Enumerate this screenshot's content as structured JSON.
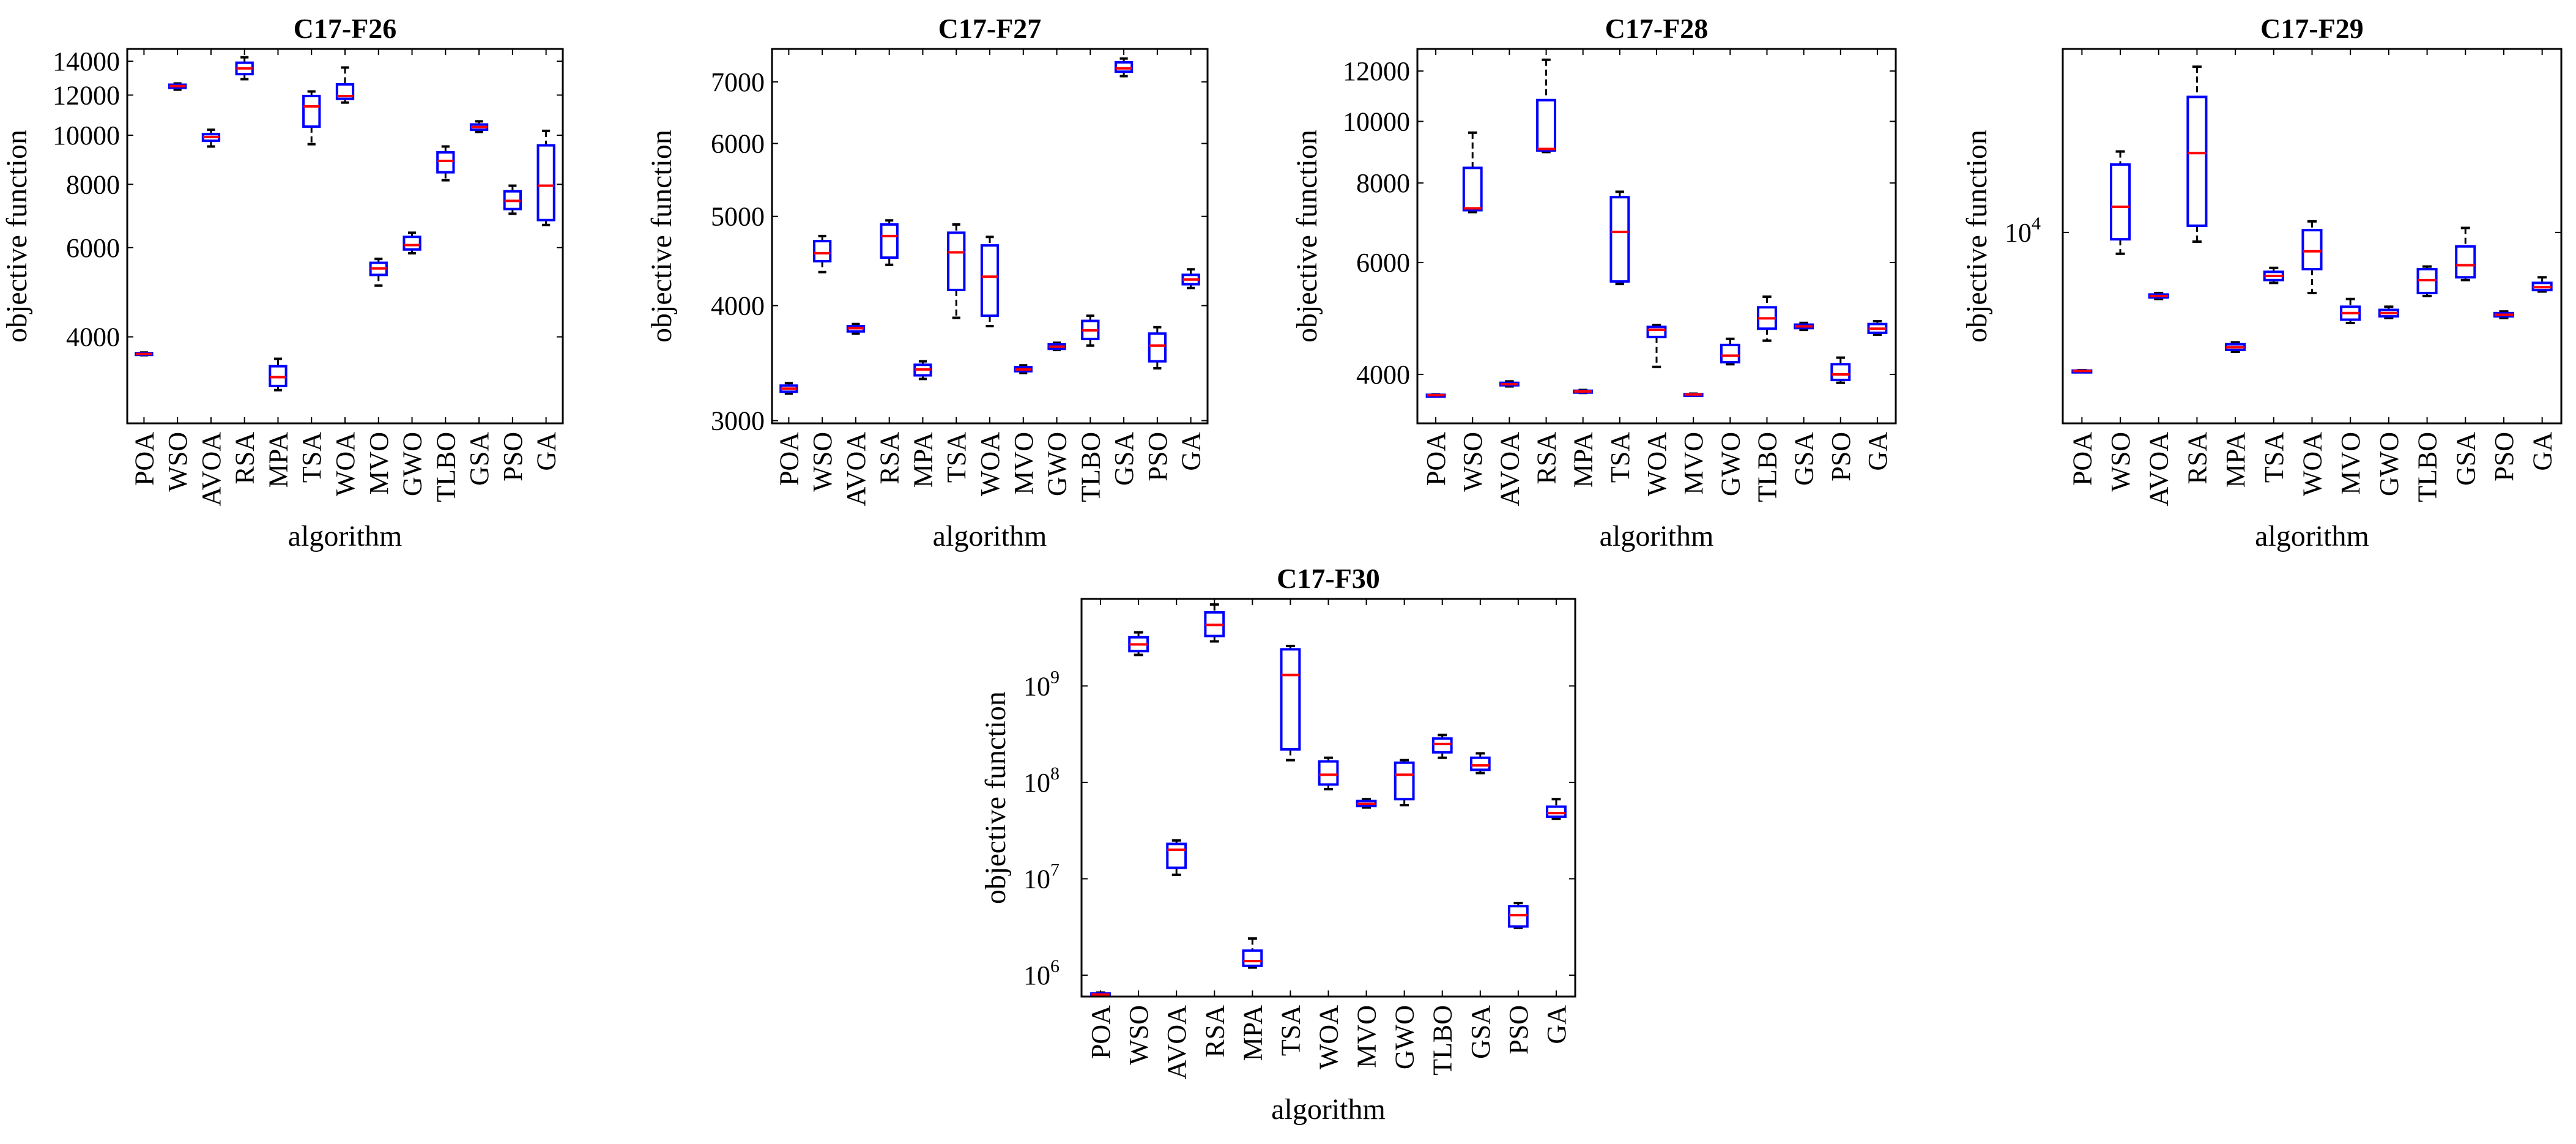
{
  "chart_data": [
    {
      "type": "box",
      "title": "C17-F26",
      "xlabel": "algorithm",
      "ylabel": "objective function",
      "yscale": "log",
      "ylim": [
        2700,
        14800
      ],
      "yticks": [
        {
          "v": 4000,
          "label": "4000"
        },
        {
          "v": 6000,
          "label": "6000"
        },
        {
          "v": 8000,
          "label": "8000"
        },
        {
          "v": 10000,
          "label": "10000"
        },
        {
          "v": 12000,
          "label": "12000"
        },
        {
          "v": 14000,
          "label": "14000"
        }
      ],
      "categories": [
        "POA",
        "WSO",
        "AVOA",
        "RSA",
        "MPA",
        "TSA",
        "WOA",
        "MVO",
        "GWO",
        "TLBO",
        "GSA",
        "PSO",
        "GA"
      ],
      "boxes": [
        {
          "min": 3680,
          "q1": 3690,
          "median": 3700,
          "q3": 3715,
          "max": 3725
        },
        {
          "min": 12300,
          "q1": 12400,
          "median": 12500,
          "q3": 12580,
          "max": 12650
        },
        {
          "min": 9500,
          "q1": 9750,
          "median": 9920,
          "q3": 10050,
          "max": 10250
        },
        {
          "min": 12900,
          "q1": 13200,
          "median": 13550,
          "q3": 13900,
          "max": 14250
        },
        {
          "min": 3140,
          "q1": 3200,
          "median": 3330,
          "q3": 3500,
          "max": 3620
        },
        {
          "min": 9600,
          "q1": 10400,
          "median": 11400,
          "q3": 11950,
          "max": 12200
        },
        {
          "min": 11600,
          "q1": 11800,
          "median": 11950,
          "q3": 12600,
          "max": 13600
        },
        {
          "min": 5050,
          "q1": 5300,
          "median": 5460,
          "q3": 5600,
          "max": 5700
        },
        {
          "min": 5850,
          "q1": 5950,
          "median": 6070,
          "q3": 6300,
          "max": 6420
        },
        {
          "min": 8150,
          "q1": 8450,
          "median": 8900,
          "q3": 9250,
          "max": 9500
        },
        {
          "min": 10150,
          "q1": 10250,
          "median": 10380,
          "q3": 10500,
          "max": 10650
        },
        {
          "min": 7000,
          "q1": 7150,
          "median": 7420,
          "q3": 7750,
          "max": 7950
        },
        {
          "min": 6650,
          "q1": 6800,
          "median": 7950,
          "q3": 9550,
          "max": 10200
        }
      ]
    },
    {
      "type": "box",
      "title": "C17-F27",
      "xlabel": "algorithm",
      "ylabel": "objective function",
      "yscale": "log",
      "ylim": [
        2980,
        7600
      ],
      "yticks": [
        {
          "v": 3000,
          "label": "3000"
        },
        {
          "v": 4000,
          "label": "4000"
        },
        {
          "v": 5000,
          "label": "5000"
        },
        {
          "v": 6000,
          "label": "6000"
        },
        {
          "v": 7000,
          "label": "7000"
        }
      ],
      "categories": [
        "POA",
        "WSO",
        "AVOA",
        "RSA",
        "MPA",
        "TSA",
        "WOA",
        "MVO",
        "GWO",
        "TLBO",
        "GSA",
        "PSO",
        "GA"
      ],
      "boxes": [
        {
          "min": 3210,
          "q1": 3225,
          "median": 3250,
          "q3": 3275,
          "max": 3295
        },
        {
          "min": 4350,
          "q1": 4470,
          "median": 4560,
          "q3": 4700,
          "max": 4760
        },
        {
          "min": 3730,
          "q1": 3750,
          "median": 3780,
          "q3": 3800,
          "max": 3820
        },
        {
          "min": 4430,
          "q1": 4510,
          "median": 4760,
          "q3": 4900,
          "max": 4950
        },
        {
          "min": 3330,
          "q1": 3360,
          "median": 3410,
          "q3": 3450,
          "max": 3480
        },
        {
          "min": 3880,
          "q1": 4160,
          "median": 4570,
          "q3": 4800,
          "max": 4900
        },
        {
          "min": 3800,
          "q1": 3900,
          "median": 4300,
          "q3": 4650,
          "max": 4750
        },
        {
          "min": 3380,
          "q1": 3395,
          "median": 3410,
          "q3": 3430,
          "max": 3445
        },
        {
          "min": 3580,
          "q1": 3590,
          "median": 3610,
          "q3": 3630,
          "max": 3645
        },
        {
          "min": 3620,
          "q1": 3680,
          "median": 3760,
          "q3": 3850,
          "max": 3900
        },
        {
          "min": 7100,
          "q1": 7180,
          "median": 7240,
          "q3": 7350,
          "max": 7420
        },
        {
          "min": 3420,
          "q1": 3480,
          "median": 3620,
          "q3": 3730,
          "max": 3790
        },
        {
          "min": 4180,
          "q1": 4220,
          "median": 4270,
          "q3": 4320,
          "max": 4380
        }
      ]
    },
    {
      "type": "box",
      "title": "C17-F28",
      "xlabel": "algorithm",
      "ylabel": "objective function",
      "yscale": "log",
      "ylim": [
        3350,
        13000
      ],
      "yticks": [
        {
          "v": 4000,
          "label": "4000"
        },
        {
          "v": 6000,
          "label": "6000"
        },
        {
          "v": 8000,
          "label": "8000"
        },
        {
          "v": 10000,
          "label": "10000"
        },
        {
          "v": 12000,
          "label": "12000"
        }
      ],
      "categories": [
        "POA",
        "WSO",
        "AVOA",
        "RSA",
        "MPA",
        "TSA",
        "WOA",
        "MVO",
        "GWO",
        "TLBO",
        "GSA",
        "PSO",
        "GA"
      ],
      "boxes": [
        {
          "min": 3700,
          "q1": 3705,
          "median": 3710,
          "q3": 3715,
          "max": 3720
        },
        {
          "min": 7200,
          "q1": 7250,
          "median": 7300,
          "q3": 8450,
          "max": 9600
        },
        {
          "min": 3830,
          "q1": 3845,
          "median": 3860,
          "q3": 3880,
          "max": 3900
        },
        {
          "min": 8950,
          "q1": 9000,
          "median": 9050,
          "q3": 10800,
          "max": 12500
        },
        {
          "min": 3740,
          "q1": 3750,
          "median": 3760,
          "q3": 3770,
          "max": 3780
        },
        {
          "min": 5550,
          "q1": 5600,
          "median": 6700,
          "q3": 7600,
          "max": 7750
        },
        {
          "min": 4110,
          "q1": 4580,
          "median": 4700,
          "q3": 4750,
          "max": 4780
        },
        {
          "min": 3710,
          "q1": 3715,
          "median": 3720,
          "q3": 3725,
          "max": 3730
        },
        {
          "min": 4150,
          "q1": 4180,
          "median": 4280,
          "q3": 4450,
          "max": 4550
        },
        {
          "min": 4520,
          "q1": 4720,
          "median": 4900,
          "q3": 5100,
          "max": 5300
        },
        {
          "min": 4700,
          "q1": 4730,
          "median": 4760,
          "q3": 4790,
          "max": 4820
        },
        {
          "min": 3880,
          "q1": 3920,
          "median": 4000,
          "q3": 4150,
          "max": 4250
        },
        {
          "min": 4620,
          "q1": 4650,
          "median": 4720,
          "q3": 4800,
          "max": 4850
        }
      ]
    },
    {
      "type": "box",
      "title": "C17-F29",
      "xlabel": "algorithm",
      "ylabel": "objective function",
      "yscale": "log",
      "ylim": [
        4300,
        22500
      ],
      "yticks": [
        {
          "v": 10000,
          "label": "10",
          "sup": "4"
        }
      ],
      "categories": [
        "POA",
        "WSO",
        "AVOA",
        "RSA",
        "MPA",
        "TSA",
        "WOA",
        "MVO",
        "GWO",
        "TLBO",
        "GSA",
        "PSO",
        "GA"
      ],
      "boxes": [
        {
          "min": 5400,
          "q1": 5410,
          "median": 5420,
          "q3": 5430,
          "max": 5440
        },
        {
          "min": 9100,
          "q1": 9700,
          "median": 11200,
          "q3": 13500,
          "max": 14300
        },
        {
          "min": 7450,
          "q1": 7500,
          "median": 7550,
          "q3": 7600,
          "max": 7650
        },
        {
          "min": 9600,
          "q1": 10300,
          "median": 14200,
          "q3": 18200,
          "max": 20800
        },
        {
          "min": 5900,
          "q1": 5950,
          "median": 6020,
          "q3": 6100,
          "max": 6150
        },
        {
          "min": 8000,
          "q1": 8100,
          "median": 8250,
          "q3": 8400,
          "max": 8550
        },
        {
          "min": 7650,
          "q1": 8500,
          "median": 9200,
          "q3": 10100,
          "max": 10500
        },
        {
          "min": 6700,
          "q1": 6800,
          "median": 7000,
          "q3": 7200,
          "max": 7450
        },
        {
          "min": 6850,
          "q1": 6900,
          "median": 7000,
          "q3": 7100,
          "max": 7200
        },
        {
          "min": 7550,
          "q1": 7650,
          "median": 8100,
          "q3": 8500,
          "max": 8600
        },
        {
          "min": 8100,
          "q1": 8200,
          "median": 8650,
          "q3": 9400,
          "max": 10200
        },
        {
          "min": 6850,
          "q1": 6900,
          "median": 6950,
          "q3": 7000,
          "max": 7050
        },
        {
          "min": 7700,
          "q1": 7750,
          "median": 7850,
          "q3": 8000,
          "max": 8200
        }
      ]
    },
    {
      "type": "box",
      "title": "C17-F30",
      "xlabel": "algorithm",
      "ylabel": "objective function",
      "yscale": "log",
      "ylim": [
        600000,
        8000000000
      ],
      "yticks": [
        {
          "v": 1000000,
          "label": "10",
          "sup": "6"
        },
        {
          "v": 10000000,
          "label": "10",
          "sup": "7"
        },
        {
          "v": 100000000,
          "label": "10",
          "sup": "8"
        },
        {
          "v": 1000000000,
          "label": "10",
          "sup": "9"
        }
      ],
      "categories": [
        "POA",
        "WSO",
        "AVOA",
        "RSA",
        "MPA",
        "TSA",
        "WOA",
        "MVO",
        "GWO",
        "TLBO",
        "GSA",
        "PSO",
        "GA"
      ],
      "boxes": [
        {
          "min": 620000,
          "q1": 625000,
          "median": 630000,
          "q3": 645000,
          "max": 660000
        },
        {
          "min": 2100000000,
          "q1": 2300000000,
          "median": 2700000000,
          "q3": 3200000000,
          "max": 3600000000
        },
        {
          "min": 11000000,
          "q1": 13000000,
          "median": 20000000,
          "q3": 23000000,
          "max": 25000000
        },
        {
          "min": 2900000000,
          "q1": 3300000000,
          "median": 4300000000,
          "q3": 5800000000,
          "max": 7000000000
        },
        {
          "min": 1200000,
          "q1": 1250000,
          "median": 1400000,
          "q3": 1800000,
          "max": 2400000
        },
        {
          "min": 170000000,
          "q1": 220000000,
          "median": 1300000000,
          "q3": 2400000000,
          "max": 2600000000
        },
        {
          "min": 85000000,
          "q1": 95000000,
          "median": 120000000,
          "q3": 165000000,
          "max": 180000000
        },
        {
          "min": 55000000,
          "q1": 57000000,
          "median": 60000000,
          "q3": 64000000,
          "max": 67000000
        },
        {
          "min": 58000000,
          "q1": 67000000,
          "median": 120000000,
          "q3": 160000000,
          "max": 170000000
        },
        {
          "min": 180000000,
          "q1": 205000000,
          "median": 250000000,
          "q3": 285000000,
          "max": 310000000
        },
        {
          "min": 125000000,
          "q1": 135000000,
          "median": 150000000,
          "q3": 180000000,
          "max": 200000000
        },
        {
          "min": 3100000,
          "q1": 3200000,
          "median": 4200000,
          "q3": 5200000,
          "max": 5600000
        },
        {
          "min": 42000000,
          "q1": 44000000,
          "median": 48000000,
          "q3": 56000000,
          "max": 67000000
        }
      ]
    }
  ],
  "style": {
    "box_color": "#0000ff",
    "median_color": "#ff0000",
    "whisker_color": "#000000"
  }
}
